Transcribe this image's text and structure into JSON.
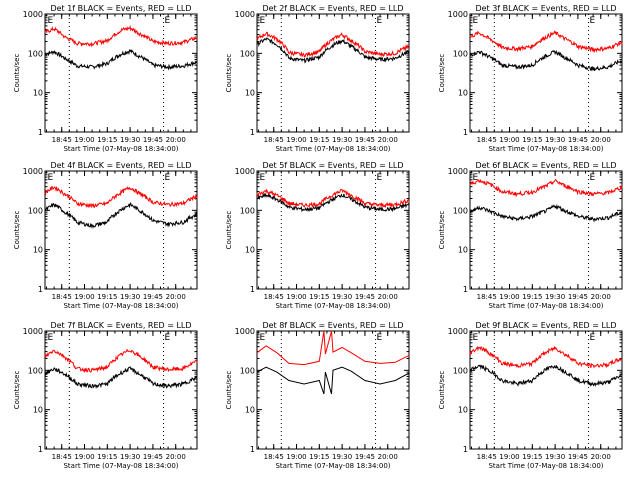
{
  "colors": {
    "background": "#ffffff",
    "events": "#000000",
    "lld": "#ff0000"
  },
  "chart_data": [
    {
      "type": "line",
      "title": "Det 1f BLACK = Events, RED = LLD",
      "xlabel": "Start Time (07-May-08 18:34:00)",
      "ylabel": "Counts/sec",
      "yscale": "log",
      "ylim": [
        1,
        1000
      ],
      "yticklabels": [
        "1",
        "10",
        "100",
        "1000"
      ],
      "xlim": [
        "18:34",
        "20:14"
      ],
      "xticklabels": [
        "18:45",
        "19:00",
        "19:15",
        "19:30",
        "19:45",
        "20:00"
      ],
      "grid": false,
      "annotations": [
        {
          "text": "E",
          "x": "18:35"
        },
        {
          "text": "E",
          "x": "19:52"
        }
      ],
      "event_lines": [
        "18:50",
        "19:52"
      ],
      "series": [
        {
          "name": "Events",
          "x": [
            "18:34",
            "18:40",
            "18:47",
            "18:55",
            "19:05",
            "19:15",
            "19:25",
            "19:30",
            "19:36",
            "19:45",
            "19:55",
            "20:05",
            "20:14"
          ],
          "values": [
            95,
            110,
            75,
            48,
            45,
            55,
            100,
            115,
            85,
            50,
            45,
            48,
            60
          ]
        },
        {
          "name": "LLD",
          "x": [
            "18:34",
            "18:40",
            "18:47",
            "18:55",
            "19:05",
            "19:15",
            "19:25",
            "19:30",
            "19:36",
            "19:45",
            "19:55",
            "20:05",
            "20:14"
          ],
          "values": [
            340,
            420,
            260,
            180,
            175,
            210,
            400,
            440,
            320,
            200,
            180,
            190,
            250
          ]
        }
      ]
    },
    {
      "type": "line",
      "title": "Det 2f BLACK = Events, RED = LLD",
      "xlabel": "Start Time (07-May-08 18:34:00)",
      "ylabel": "Counts/sec",
      "yscale": "log",
      "ylim": [
        1,
        1000
      ],
      "yticklabels": [
        "1",
        "10",
        "100",
        "1000"
      ],
      "xlim": [
        "18:34",
        "20:14"
      ],
      "xticklabels": [
        "18:45",
        "19:00",
        "19:15",
        "19:30",
        "19:45",
        "20:00"
      ],
      "grid": false,
      "annotations": [
        {
          "text": "E",
          "x": "18:35"
        },
        {
          "text": "E",
          "x": "19:52"
        }
      ],
      "event_lines": [
        "18:50",
        "19:52"
      ],
      "series": [
        {
          "name": "Events",
          "x": [
            "18:34",
            "18:40",
            "18:47",
            "18:55",
            "19:05",
            "19:15",
            "19:25",
            "19:30",
            "19:36",
            "19:45",
            "19:55",
            "20:05",
            "20:14"
          ],
          "values": [
            170,
            230,
            170,
            75,
            65,
            80,
            170,
            210,
            150,
            80,
            70,
            75,
            110
          ]
        },
        {
          "name": "LLD",
          "x": [
            "18:34",
            "18:40",
            "18:47",
            "18:55",
            "19:05",
            "19:15",
            "19:25",
            "19:30",
            "19:36",
            "19:45",
            "19:55",
            "20:05",
            "20:14"
          ],
          "values": [
            230,
            320,
            230,
            105,
            90,
            110,
            240,
            300,
            210,
            110,
            95,
            100,
            150
          ]
        }
      ]
    },
    {
      "type": "line",
      "title": "Det 3f BLACK = Events, RED = LLD",
      "xlabel": "Start Time (07-May-08 18:34:00)",
      "ylabel": "Counts/sec",
      "yscale": "log",
      "ylim": [
        1,
        1000
      ],
      "yticklabels": [
        "1",
        "10",
        "100",
        "1000"
      ],
      "xlim": [
        "18:34",
        "20:14"
      ],
      "xticklabels": [
        "18:45",
        "19:00",
        "19:15",
        "19:30",
        "19:45",
        "20:00"
      ],
      "grid": false,
      "annotations": [
        {
          "text": "E",
          "x": "18:35"
        },
        {
          "text": "E",
          "x": "19:52"
        }
      ],
      "event_lines": [
        "18:50",
        "19:52"
      ],
      "series": [
        {
          "name": "Events",
          "x": [
            "18:34",
            "18:40",
            "18:47",
            "18:55",
            "19:05",
            "19:15",
            "19:25",
            "19:30",
            "19:36",
            "19:45",
            "19:55",
            "20:05",
            "20:14"
          ],
          "values": [
            90,
            110,
            80,
            50,
            45,
            50,
            90,
            110,
            80,
            50,
            40,
            45,
            65
          ]
        },
        {
          "name": "LLD",
          "x": [
            "18:34",
            "18:40",
            "18:47",
            "18:55",
            "19:05",
            "19:15",
            "19:25",
            "19:30",
            "19:36",
            "19:45",
            "19:55",
            "20:05",
            "20:14"
          ],
          "values": [
            260,
            330,
            230,
            140,
            130,
            150,
            270,
            330,
            240,
            150,
            125,
            135,
            190
          ]
        }
      ]
    },
    {
      "type": "line",
      "title": "Det 4f BLACK = Events, RED = LLD",
      "xlabel": "Start Time (07-May-08 18:34:00)",
      "ylabel": "Counts/sec",
      "yscale": "log",
      "ylim": [
        1,
        1000
      ],
      "yticklabels": [
        "1",
        "10",
        "100",
        "1000"
      ],
      "xlim": [
        "18:34",
        "20:14"
      ],
      "xticklabels": [
        "18:45",
        "19:00",
        "19:15",
        "19:30",
        "19:45",
        "20:00"
      ],
      "grid": false,
      "annotations": [
        {
          "text": "E",
          "x": "18:35"
        },
        {
          "text": "E",
          "x": "19:52"
        }
      ],
      "event_lines": [
        "18:50",
        "19:52"
      ],
      "series": [
        {
          "name": "Events",
          "x": [
            "18:34",
            "18:40",
            "18:47",
            "18:55",
            "19:05",
            "19:15",
            "19:25",
            "19:30",
            "19:36",
            "19:45",
            "19:55",
            "20:05",
            "20:14"
          ],
          "values": [
            100,
            140,
            90,
            50,
            40,
            50,
            110,
            140,
            100,
            55,
            45,
            50,
            80
          ]
        },
        {
          "name": "LLD",
          "x": [
            "18:34",
            "18:40",
            "18:47",
            "18:55",
            "19:05",
            "19:15",
            "19:25",
            "19:30",
            "19:36",
            "19:45",
            "19:55",
            "20:05",
            "20:14"
          ],
          "values": [
            280,
            390,
            260,
            150,
            130,
            150,
            300,
            380,
            270,
            160,
            140,
            150,
            230
          ]
        }
      ]
    },
    {
      "type": "line",
      "title": "Det 5f BLACK = Events, RED = LLD",
      "xlabel": "Start Time (07-May-08 18:34:00)",
      "ylabel": "Counts/sec",
      "yscale": "log",
      "ylim": [
        1,
        1000
      ],
      "yticklabels": [
        "1",
        "10",
        "100",
        "1000"
      ],
      "xlim": [
        "18:34",
        "20:14"
      ],
      "xticklabels": [
        "18:45",
        "19:00",
        "19:15",
        "19:30",
        "19:45",
        "20:00"
      ],
      "grid": false,
      "annotations": [
        {
          "text": "E",
          "x": "18:35"
        },
        {
          "text": "E",
          "x": "19:52"
        }
      ],
      "event_lines": [
        "18:50",
        "19:52"
      ],
      "series": [
        {
          "name": "Events",
          "x": [
            "18:34",
            "18:40",
            "18:47",
            "18:55",
            "19:05",
            "19:15",
            "19:25",
            "19:30",
            "19:36",
            "19:45",
            "19:55",
            "20:05",
            "20:14"
          ],
          "values": [
            200,
            240,
            190,
            120,
            105,
            115,
            200,
            250,
            190,
            120,
            105,
            110,
            140
          ]
        },
        {
          "name": "LLD",
          "x": [
            "18:34",
            "18:40",
            "18:47",
            "18:55",
            "19:05",
            "19:15",
            "19:25",
            "19:30",
            "19:36",
            "19:45",
            "19:55",
            "20:05",
            "20:14"
          ],
          "values": [
            250,
            310,
            240,
            150,
            135,
            145,
            260,
            320,
            240,
            150,
            135,
            140,
            180
          ]
        }
      ]
    },
    {
      "type": "line",
      "title": "Det 6f BLACK = Events, RED = LLD",
      "xlabel": "Start Time (07-May-08 18:34:00)",
      "ylabel": "Counts/sec",
      "yscale": "log",
      "ylim": [
        1,
        1000
      ],
      "yticklabels": [
        "1",
        "10",
        "100",
        "1000"
      ],
      "xlim": [
        "18:34",
        "20:14"
      ],
      "xticklabels": [
        "18:45",
        "19:00",
        "19:15",
        "19:30",
        "19:45",
        "20:00"
      ],
      "grid": false,
      "annotations": [
        {
          "text": "E",
          "x": "18:35"
        },
        {
          "text": "E",
          "x": "19:52"
        }
      ],
      "event_lines": [
        "18:50",
        "19:52"
      ],
      "series": [
        {
          "name": "Events",
          "x": [
            "18:34",
            "18:40",
            "18:47",
            "18:55",
            "19:05",
            "19:15",
            "19:25",
            "19:30",
            "19:36",
            "19:45",
            "19:55",
            "20:05",
            "20:14"
          ],
          "values": [
            90,
            120,
            95,
            70,
            60,
            70,
            100,
            130,
            100,
            70,
            60,
            65,
            90
          ]
        },
        {
          "name": "LLD",
          "x": [
            "18:34",
            "18:40",
            "18:47",
            "18:55",
            "19:05",
            "19:15",
            "19:25",
            "19:30",
            "19:36",
            "19:45",
            "19:55",
            "20:05",
            "20:14"
          ],
          "values": [
            450,
            580,
            460,
            300,
            260,
            290,
            430,
            560,
            430,
            300,
            260,
            280,
            380
          ]
        }
      ]
    },
    {
      "type": "line",
      "title": "Det 7f BLACK = Events, RED = LLD",
      "xlabel": "Start Time (07-May-08 18:34:00)",
      "ylabel": "Counts/sec",
      "yscale": "log",
      "ylim": [
        1,
        1000
      ],
      "yticklabels": [
        "1",
        "10",
        "100",
        "1000"
      ],
      "xlim": [
        "18:34",
        "20:14"
      ],
      "xticklabels": [
        "18:45",
        "19:00",
        "19:15",
        "19:30",
        "19:45",
        "20:00"
      ],
      "grid": false,
      "annotations": [
        {
          "text": "E",
          "x": "18:35"
        },
        {
          "text": "E",
          "x": "19:52"
        }
      ],
      "event_lines": [
        "18:50",
        "19:52"
      ],
      "series": [
        {
          "name": "Events",
          "x": [
            "18:34",
            "18:40",
            "18:47",
            "18:55",
            "19:05",
            "19:15",
            "19:25",
            "19:30",
            "19:36",
            "19:45",
            "19:55",
            "20:05",
            "20:14"
          ],
          "values": [
            80,
            110,
            80,
            45,
            40,
            45,
            90,
            110,
            80,
            45,
            40,
            45,
            65
          ]
        },
        {
          "name": "LLD",
          "x": [
            "18:34",
            "18:40",
            "18:47",
            "18:55",
            "19:05",
            "19:15",
            "19:25",
            "19:30",
            "19:36",
            "19:45",
            "19:55",
            "20:05",
            "20:14"
          ],
          "values": [
            220,
            320,
            220,
            110,
            100,
            120,
            260,
            330,
            230,
            120,
            105,
            110,
            170
          ]
        }
      ]
    },
    {
      "type": "line",
      "title": "Det 8f BLACK = Events, RED = LLD",
      "xlabel": "Start Time (07-May-08 18:34:00)",
      "ylabel": "Counts/sec",
      "yscale": "log",
      "ylim": [
        1,
        1000
      ],
      "yticklabels": [
        "1",
        "10",
        "100",
        "1000"
      ],
      "xlim": [
        "18:34",
        "20:14"
      ],
      "xticklabels": [
        "18:45",
        "19:00",
        "19:15",
        "19:30",
        "19:45",
        "20:00"
      ],
      "grid": false,
      "annotations": [
        {
          "text": "E",
          "x": "18:35"
        },
        {
          "text": "E",
          "x": "19:52"
        }
      ],
      "event_lines": [
        "18:50",
        "19:52"
      ],
      "series": [
        {
          "name": "Events",
          "x": [
            "18:34",
            "18:40",
            "18:47",
            "18:55",
            "19:05",
            "19:15",
            "19:18",
            "19:19",
            "19:23",
            "19:24",
            "19:30",
            "19:36",
            "19:45",
            "19:55",
            "20:05",
            "20:14"
          ],
          "values": [
            90,
            120,
            90,
            55,
            45,
            55,
            25,
            90,
            25,
            100,
            120,
            95,
            55,
            45,
            55,
            85
          ]
        },
        {
          "name": "LLD",
          "x": [
            "18:34",
            "18:40",
            "18:47",
            "18:55",
            "19:05",
            "19:15",
            "19:18",
            "19:19",
            "19:23",
            "19:24",
            "19:30",
            "19:36",
            "19:45",
            "19:55",
            "20:05",
            "20:14"
          ],
          "values": [
            280,
            420,
            280,
            150,
            140,
            170,
            1000,
            260,
            1000,
            290,
            380,
            280,
            170,
            150,
            160,
            240
          ]
        }
      ]
    },
    {
      "type": "line",
      "title": "Det 9f BLACK = Events, RED = LLD",
      "xlabel": "Start Time (07-May-08 18:34:00)",
      "ylabel": "Counts/sec",
      "yscale": "log",
      "ylim": [
        1,
        1000
      ],
      "yticklabels": [
        "1",
        "10",
        "100",
        "1000"
      ],
      "xlim": [
        "18:34",
        "20:14"
      ],
      "xticklabels": [
        "18:45",
        "19:00",
        "19:15",
        "19:30",
        "19:45",
        "20:00"
      ],
      "grid": false,
      "annotations": [
        {
          "text": "E",
          "x": "18:35"
        },
        {
          "text": "E",
          "x": "19:52"
        }
      ],
      "event_lines": [
        "18:50",
        "19:52"
      ],
      "series": [
        {
          "name": "Events",
          "x": [
            "18:34",
            "18:40",
            "18:47",
            "18:55",
            "19:05",
            "19:15",
            "19:25",
            "19:30",
            "19:36",
            "19:45",
            "19:55",
            "20:05",
            "20:14"
          ],
          "values": [
            100,
            130,
            95,
            55,
            45,
            55,
            110,
            130,
            95,
            55,
            45,
            50,
            75
          ]
        },
        {
          "name": "LLD",
          "x": [
            "18:34",
            "18:40",
            "18:47",
            "18:55",
            "19:05",
            "19:15",
            "19:25",
            "19:30",
            "19:36",
            "19:45",
            "19:55",
            "20:05",
            "20:14"
          ],
          "values": [
            270,
            390,
            270,
            150,
            130,
            150,
            300,
            370,
            260,
            150,
            130,
            140,
            200
          ]
        }
      ]
    }
  ]
}
